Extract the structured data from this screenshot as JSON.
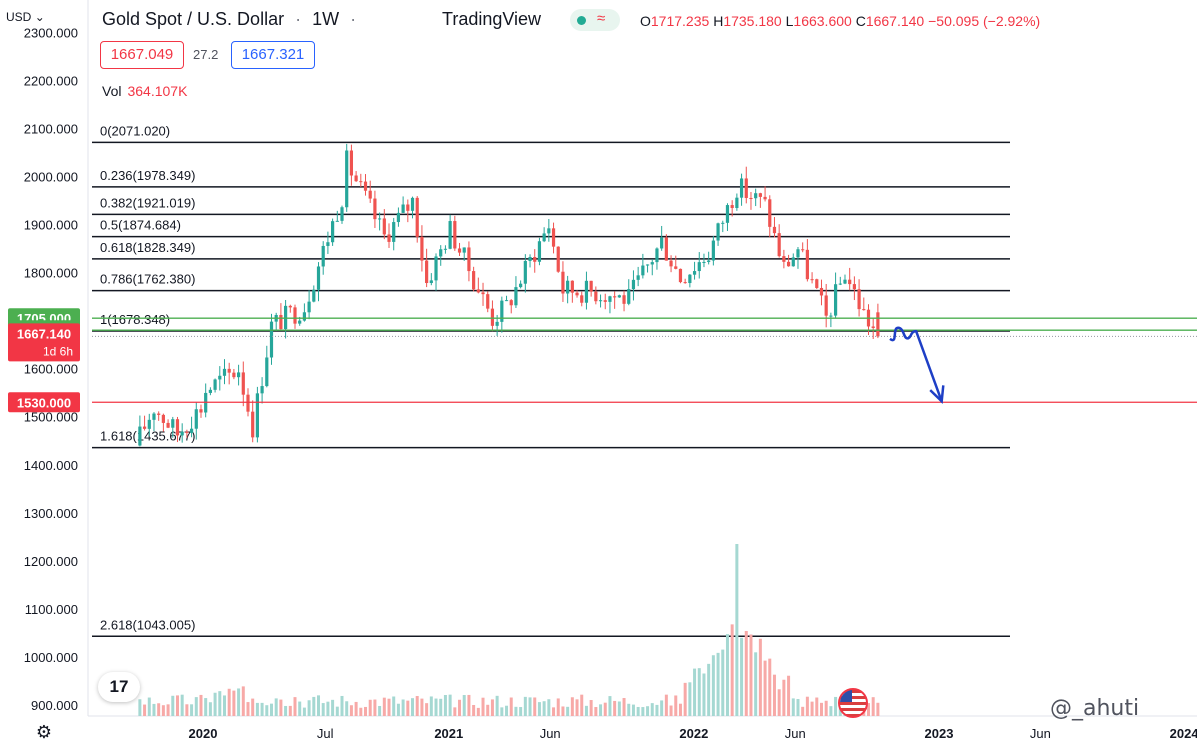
{
  "header": {
    "currency": "USD",
    "currency_chevron_icon": "chevron-down-icon",
    "symbol_title": "Gold Spot / U.S. Dollar",
    "separator": "·",
    "interval": "1W",
    "brand": "TradingView",
    "status_dot_color": "#22ab94",
    "status_icon": "wave-icon",
    "ohlc": {
      "o_label": "O",
      "o_value": "1717.235",
      "h_label": "H",
      "h_value": "1735.180",
      "l_label": "L",
      "l_value": "1663.600",
      "c_label": "C",
      "c_value": "1667.140",
      "change": "−50.095 (−2.92%)"
    }
  },
  "trade": {
    "sell_price": "1667.049",
    "spread": "27.2",
    "buy_price": "1667.321"
  },
  "volume": {
    "label": "Vol",
    "value": "364.107K"
  },
  "watermark": "@_ahuti",
  "chart_data": {
    "type": "candlestick",
    "title": "Gold Spot / U.S. Dollar",
    "ylim": [
      880,
      2320
    ],
    "x_ticks": [
      "2020",
      "Jul",
      "2021",
      "Jun",
      "2022",
      "Jun",
      "2023",
      "Jun",
      "2024"
    ],
    "y_ticks": [
      "900.000",
      "1000.000",
      "1100.000",
      "1200.000",
      "1300.000",
      "1400.000",
      "1500.000",
      "1600.000",
      "1700.000",
      "1800.000",
      "1900.000",
      "2000.000",
      "2100.000",
      "2200.000",
      "2300.000"
    ],
    "fib_levels": [
      {
        "label": "0(2071.020)",
        "value": 2071.02
      },
      {
        "label": "0.236(1978.349)",
        "value": 1978.349
      },
      {
        "label": "0.382(1921.019)",
        "value": 1921.019
      },
      {
        "label": "0.5(1874.684)",
        "value": 1874.684
      },
      {
        "label": "0.618(1828.349)",
        "value": 1828.349
      },
      {
        "label": "0.786(1762.380)",
        "value": 1762.38
      },
      {
        "label": "1(1678.348)",
        "value": 1678.348
      },
      {
        "label": "1.618(1435.677)",
        "value": 1435.677
      },
      {
        "label": "2.618(1043.005)",
        "value": 1043.005
      }
    ],
    "horizontal_lines": [
      {
        "label": "1705.000",
        "value": 1705.0,
        "color": "#4caf50"
      },
      {
        "label": "1680.000",
        "value": 1680.0,
        "color": "#4caf50"
      },
      {
        "label": "1530.000",
        "value": 1530.0,
        "color": "#f23645"
      }
    ],
    "last_price": {
      "label": "1667.140",
      "countdown": "1d 6h",
      "value": 1667.14,
      "color": "#f23645"
    },
    "projection_points": [
      {
        "x": "2022-10-20",
        "y": 1662
      },
      {
        "x": "2022-11-01",
        "y": 1685
      },
      {
        "x": "2022-11-15",
        "y": 1663
      },
      {
        "x": "2022-11-28",
        "y": 1678
      },
      {
        "x": "2023-01-05",
        "y": 1532
      }
    ],
    "colors": {
      "up": "#26a69a",
      "down": "#ef5350",
      "vol_up": "#a5d8d2",
      "vol_down": "#f7a9a7",
      "fib": "#131722",
      "projection": "#1e3fc6"
    },
    "anchors": [
      {
        "d": "2019-09-29",
        "c": 1460
      },
      {
        "d": "2019-10-20",
        "c": 1520
      },
      {
        "d": "2019-11-24",
        "c": 1465
      },
      {
        "d": "2019-12-29",
        "c": 1520
      },
      {
        "d": "2020-01-05",
        "c": 1555
      },
      {
        "d": "2020-02-23",
        "c": 1600
      },
      {
        "d": "2020-03-15",
        "c": 1480
      },
      {
        "d": "2020-04-12",
        "c": 1690
      },
      {
        "d": "2020-05-31",
        "c": 1730
      },
      {
        "d": "2020-07-26",
        "c": 1960
      },
      {
        "d": "2020-08-02",
        "c": 2030
      },
      {
        "d": "2020-09-27",
        "c": 1875
      },
      {
        "d": "2020-11-08",
        "c": 1950
      },
      {
        "d": "2020-11-29",
        "c": 1780
      },
      {
        "d": "2021-01-03",
        "c": 1890
      },
      {
        "d": "2021-03-07",
        "c": 1705
      },
      {
        "d": "2021-03-28",
        "c": 1730
      },
      {
        "d": "2021-05-30",
        "c": 1900
      },
      {
        "d": "2021-06-20",
        "c": 1765
      },
      {
        "d": "2021-08-08",
        "c": 1760
      },
      {
        "d": "2021-09-26",
        "c": 1745
      },
      {
        "d": "2021-11-14",
        "c": 1865
      },
      {
        "d": "2021-12-12",
        "c": 1790
      },
      {
        "d": "2022-01-23",
        "c": 1840
      },
      {
        "d": "2022-03-06",
        "c": 1980
      },
      {
        "d": "2022-04-17",
        "c": 1940
      },
      {
        "d": "2022-05-15",
        "c": 1810
      },
      {
        "d": "2022-06-05",
        "c": 1850
      },
      {
        "d": "2022-07-17",
        "c": 1705
      },
      {
        "d": "2022-08-14",
        "c": 1800
      },
      {
        "d": "2022-09-11",
        "c": 1715
      },
      {
        "d": "2022-10-02",
        "c": 1667
      }
    ],
    "volume_peak": {
      "d": "2022-03-06",
      "v": 1245
    }
  }
}
